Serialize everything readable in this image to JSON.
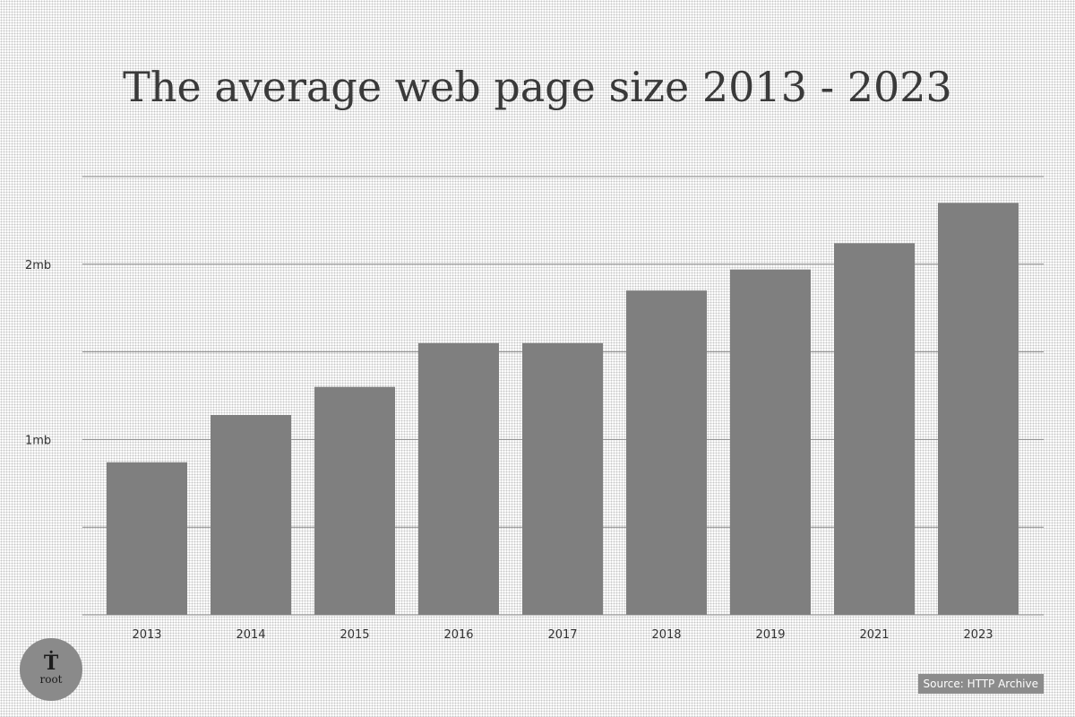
{
  "title": "The average web page size 2013 - 2023",
  "source_label": "Source: HTTP Archive",
  "logo_text": "root",
  "colors": {
    "bar": "#7f7f7f",
    "grid": "#8a8a8a",
    "text": "#333333",
    "background": "#ffffff"
  },
  "chart_data": {
    "type": "bar",
    "title": "The average web page size 2013 - 2023",
    "xlabel": "",
    "ylabel": "",
    "categories": [
      "2013",
      "2014",
      "2015",
      "2016",
      "2017",
      "2018",
      "2019",
      "2021",
      "2023"
    ],
    "values": [
      0.87,
      1.14,
      1.3,
      1.55,
      1.55,
      1.85,
      1.97,
      2.12,
      2.35
    ],
    "unit": "mb",
    "ylim": [
      0,
      2.5
    ],
    "ytick_values": [
      1,
      2
    ],
    "ytick_labels": [
      "1mb",
      "2mb"
    ],
    "grid": true,
    "grid_step": 0.5,
    "legend": "none"
  }
}
